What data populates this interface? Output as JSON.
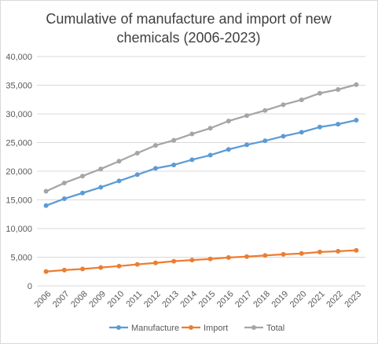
{
  "chart_data": {
    "type": "line",
    "title_lines": [
      "Cumulative of manufacture and import of new",
      "chemicals (2006-2023)"
    ],
    "xlabel": "",
    "ylabel": "",
    "x": [
      "2006",
      "2007",
      "2008",
      "2009",
      "2010",
      "2011",
      "2012",
      "2013",
      "2014",
      "2015",
      "2016",
      "2017",
      "2018",
      "2019",
      "2020",
      "2021",
      "2022",
      "2023"
    ],
    "ylim": [
      0,
      40000
    ],
    "yticks": [
      0,
      5000,
      10000,
      15000,
      20000,
      25000,
      30000,
      35000,
      40000
    ],
    "ytick_labels": [
      "0",
      "5,000",
      "10,000",
      "15,000",
      "20,000",
      "25,000",
      "30,000",
      "35,000",
      "40,000"
    ],
    "grid": true,
    "legend_position": "bottom",
    "series": [
      {
        "name": "Manufacture",
        "color": "#5b9bd5",
        "values": [
          14000,
          15200,
          16200,
          17200,
          18300,
          19400,
          20500,
          21100,
          22000,
          22800,
          23800,
          24600,
          25300,
          26100,
          26800,
          27700,
          28200,
          28900
        ]
      },
      {
        "name": "Import",
        "color": "#ed7d31",
        "values": [
          2500,
          2750,
          2950,
          3200,
          3450,
          3750,
          4000,
          4300,
          4500,
          4700,
          4950,
          5100,
          5300,
          5500,
          5650,
          5900,
          6050,
          6200
        ]
      },
      {
        "name": "Total",
        "color": "#a5a5a5",
        "values": [
          16500,
          17950,
          19150,
          20400,
          21750,
          23150,
          24500,
          25400,
          26500,
          27500,
          28750,
          29700,
          30600,
          31600,
          32450,
          33600,
          34250,
          35100
        ]
      }
    ]
  }
}
